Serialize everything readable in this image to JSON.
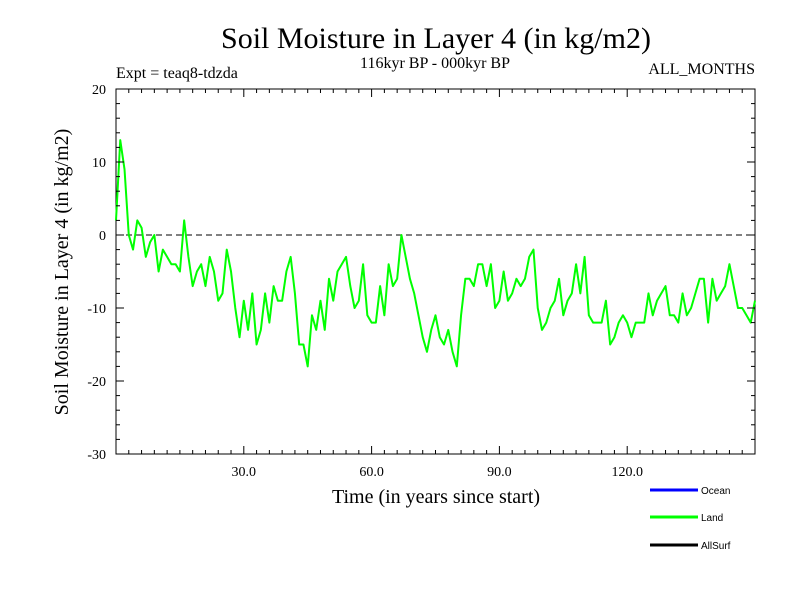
{
  "chart_data": {
    "type": "line",
    "title": "Soil Moisture in Layer 4 (in kg/m2)",
    "subtitle_left": "Expt = teaq8-tdzda",
    "subtitle_center": "116kyr BP - 000kyr BP",
    "subtitle_right": "ALL_MONTHS",
    "xlabel": "Time (in years since start)",
    "ylabel": "Soil Moisture in Layer 4 (in kg/m2)",
    "xlim": [
      0,
      150
    ],
    "ylim": [
      -30,
      20
    ],
    "x_ticks": [
      30,
      60,
      90,
      120
    ],
    "x_tick_labels": [
      "30.0",
      "60.0",
      "90.0",
      "120.0"
    ],
    "y_ticks": [
      -30,
      -20,
      -10,
      0,
      10,
      20
    ],
    "y_tick_labels": [
      "-30",
      "-20",
      "-10",
      "0",
      "10",
      "20"
    ],
    "reference_line": 0,
    "legend_position": "bottom-right",
    "series": [
      {
        "name": "Ocean",
        "color": "#0000ff",
        "values": []
      },
      {
        "name": "Land",
        "color": "#00ff00",
        "x_start": 0,
        "x_step": 1,
        "values": [
          2,
          13,
          9,
          0,
          -2,
          2,
          1,
          -3,
          -1,
          0,
          -5,
          -2,
          -3,
          -4,
          -4,
          -5,
          2,
          -3,
          -7,
          -5,
          -4,
          -7,
          -3,
          -5,
          -9,
          -8,
          -2,
          -5,
          -10,
          -14,
          -9,
          -13,
          -8,
          -15,
          -13,
          -8,
          -12,
          -7,
          -9,
          -9,
          -5,
          -3,
          -8,
          -15,
          -15,
          -18,
          -11,
          -13,
          -9,
          -13,
          -6,
          -9,
          -5,
          -4,
          -3,
          -7,
          -10,
          -9,
          -4,
          -11,
          -12,
          -12,
          -7,
          -11,
          -4,
          -7,
          -6,
          0,
          -3,
          -6,
          -8,
          -11,
          -14,
          -16,
          -13,
          -11,
          -14,
          -15,
          -13,
          -16,
          -18,
          -11,
          -6,
          -6,
          -7,
          -4,
          -4,
          -7,
          -4,
          -10,
          -9,
          -5,
          -9,
          -8,
          -6,
          -7,
          -6,
          -3,
          -2,
          -10,
          -13,
          -12,
          -10,
          -9,
          -6,
          -11,
          -9,
          -8,
          -4,
          -8,
          -3,
          -11,
          -12,
          -12,
          -12,
          -9,
          -15,
          -14,
          -12,
          -11,
          -12,
          -14,
          -12,
          -12,
          -12,
          -8,
          -11,
          -9,
          -8,
          -7,
          -11,
          -11,
          -12,
          -8,
          -11,
          -10,
          -8,
          -6,
          -6,
          -12,
          -6,
          -9,
          -8,
          -7,
          -4,
          -7,
          -10,
          -10,
          -11,
          -12,
          -9
        ]
      },
      {
        "name": "AllSurf",
        "color": "#000000",
        "values": []
      }
    ]
  }
}
